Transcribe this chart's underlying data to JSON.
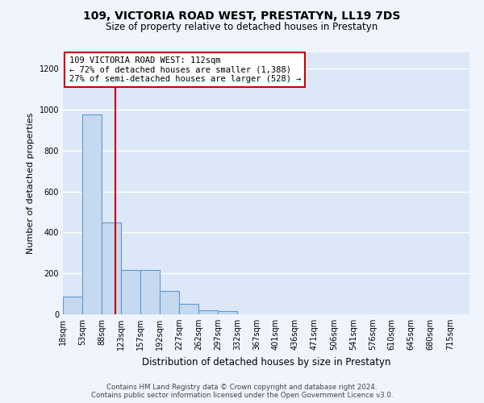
{
  "title": "109, VICTORIA ROAD WEST, PRESTATYN, LL19 7DS",
  "subtitle": "Size of property relative to detached houses in Prestatyn",
  "xlabel": "Distribution of detached houses by size in Prestatyn",
  "ylabel": "Number of detached properties",
  "bin_labels": [
    "18sqm",
    "53sqm",
    "88sqm",
    "123sqm",
    "157sqm",
    "192sqm",
    "227sqm",
    "262sqm",
    "297sqm",
    "332sqm",
    "367sqm",
    "401sqm",
    "436sqm",
    "471sqm",
    "506sqm",
    "541sqm",
    "576sqm",
    "610sqm",
    "645sqm",
    "680sqm",
    "715sqm"
  ],
  "bar_heights": [
    88,
    975,
    450,
    215,
    215,
    115,
    50,
    20,
    15,
    0,
    0,
    0,
    0,
    0,
    0,
    0,
    0,
    0,
    0,
    0,
    0
  ],
  "bar_color": "#c6d9f0",
  "bar_edge_color": "#5b9bd5",
  "property_size": 112,
  "vline_color": "#cc0000",
  "annotation_line1": "109 VICTORIA ROAD WEST: 112sqm",
  "annotation_line2": "← 72% of detached houses are smaller (1,388)",
  "annotation_line3": "27% of semi-detached houses are larger (528) →",
  "annotation_box_color": "#ffffff",
  "annotation_box_edge": "#cc0000",
  "ylim": [
    0,
    1280
  ],
  "yticks": [
    0,
    200,
    400,
    600,
    800,
    1000,
    1200
  ],
  "footer_line1": "Contains HM Land Registry data © Crown copyright and database right 2024.",
  "footer_line2": "Contains public sector information licensed under the Open Government Licence v3.0.",
  "fig_background": "#f0f4fc",
  "plot_background": "#dce8f8",
  "grid_color": "#ffffff",
  "bin_edges": [
    18,
    53,
    88,
    123,
    157,
    192,
    227,
    262,
    297,
    332,
    367,
    401,
    436,
    471,
    506,
    541,
    576,
    610,
    645,
    680,
    715,
    750
  ],
  "title_fontsize": 10,
  "subtitle_fontsize": 8.5,
  "ylabel_fontsize": 8,
  "xlabel_fontsize": 8.5,
  "tick_fontsize": 7,
  "footer_fontsize": 6.2,
  "annotation_fontsize": 7.5
}
